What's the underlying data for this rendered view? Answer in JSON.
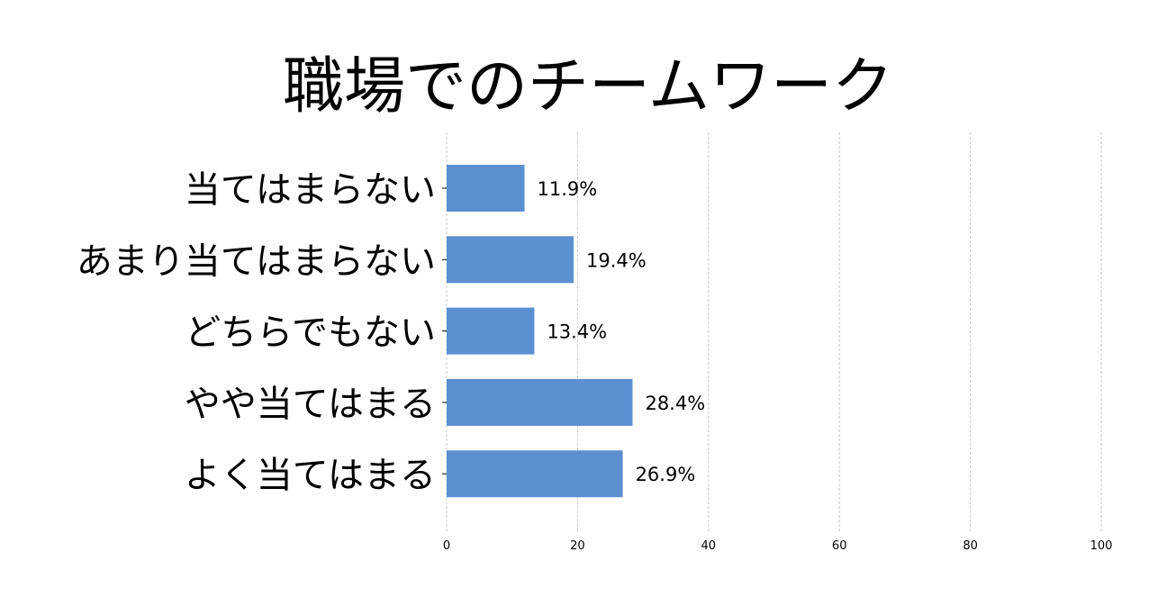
{
  "chart_data": {
    "type": "bar",
    "orientation": "horizontal",
    "title": "職場でのチームワーク",
    "categories": [
      "当てはまらない",
      "あまり当てはまらない",
      "どちらでもない",
      "やや当てはまる",
      "よく当てはまる"
    ],
    "values": [
      11.9,
      19.4,
      13.4,
      28.4,
      26.9
    ],
    "value_labels": [
      "11.9%",
      "19.4%",
      "13.4%",
      "28.4%",
      "26.9%"
    ],
    "xlim": [
      0,
      100
    ],
    "xticks": [
      0,
      20,
      40,
      60,
      80,
      100
    ],
    "xtick_labels": [
      "0",
      "20",
      "40",
      "60",
      "80",
      "100"
    ],
    "grid": "vertical dashed",
    "bar_color": "#5b8fd0"
  }
}
